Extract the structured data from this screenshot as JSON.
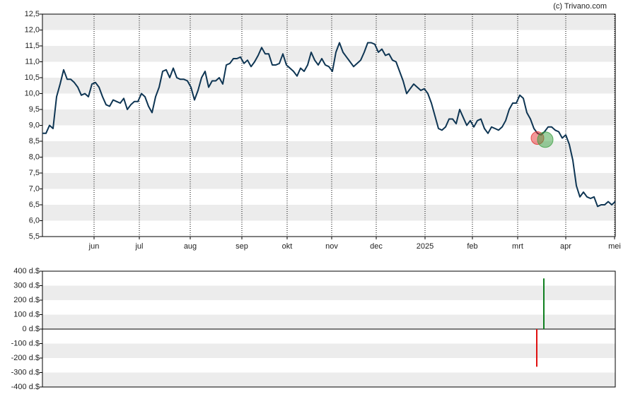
{
  "credit": "(c) Trivano.com",
  "chart_data": [
    {
      "type": "line",
      "color": "#0e3553",
      "grid": "stripes",
      "xlim": [
        0,
        162
      ],
      "xticks": [
        {
          "value": 14.6,
          "label": "jun"
        },
        {
          "value": 27.4,
          "label": "jul"
        },
        {
          "value": 41.8,
          "label": "aug"
        },
        {
          "value": 56.4,
          "label": "sep"
        },
        {
          "value": 69.2,
          "label": "okt"
        },
        {
          "value": 81.8,
          "label": "nov"
        },
        {
          "value": 94.4,
          "label": "dec"
        },
        {
          "value": 108.2,
          "label": "2025"
        },
        {
          "value": 121.6,
          "label": "feb"
        },
        {
          "value": 134.4,
          "label": "mrt"
        },
        {
          "value": 148,
          "label": "apr"
        },
        {
          "value": 161.8,
          "label": "mei"
        }
      ],
      "ylim": [
        5.5,
        12.5
      ],
      "yticks": [
        {
          "value": 5.5,
          "label": "5,5"
        },
        {
          "value": 6,
          "label": "6,0"
        },
        {
          "value": 6.5,
          "label": "6,5"
        },
        {
          "value": 7,
          "label": "7,0"
        },
        {
          "value": 7.5,
          "label": "7,5"
        },
        {
          "value": 8,
          "label": "8,0"
        },
        {
          "value": 8.5,
          "label": "8,5"
        },
        {
          "value": 9,
          "label": "9,0"
        },
        {
          "value": 9.5,
          "label": "9,5"
        },
        {
          "value": 10,
          "label": "10,0"
        },
        {
          "value": 10.5,
          "label": "10,5"
        },
        {
          "value": 11,
          "label": "11,0"
        },
        {
          "value": 11.5,
          "label": "11,5"
        },
        {
          "value": 12,
          "label": "12,0"
        },
        {
          "value": 12.5,
          "label": "12,5"
        }
      ],
      "values": [
        8.75,
        8.75,
        9.0,
        8.9,
        9.9,
        10.3,
        10.75,
        10.45,
        10.45,
        10.35,
        10.2,
        9.95,
        10.0,
        9.9,
        10.3,
        10.35,
        10.2,
        9.9,
        9.65,
        9.6,
        9.8,
        9.75,
        9.7,
        9.85,
        9.5,
        9.65,
        9.75,
        9.75,
        10.0,
        9.9,
        9.6,
        9.4,
        9.9,
        10.2,
        10.7,
        10.75,
        10.5,
        10.8,
        10.5,
        10.45,
        10.45,
        10.4,
        10.2,
        9.8,
        10.1,
        10.5,
        10.7,
        10.2,
        10.4,
        10.4,
        10.5,
        10.3,
        10.9,
        10.95,
        11.1,
        11.1,
        11.15,
        10.95,
        11.05,
        10.85,
        11.0,
        11.2,
        11.45,
        11.25,
        11.25,
        10.9,
        10.9,
        10.95,
        11.25,
        10.9,
        10.8,
        10.7,
        10.55,
        10.8,
        10.7,
        10.9,
        11.3,
        11.05,
        10.9,
        11.1,
        10.9,
        10.85,
        10.7,
        11.3,
        11.6,
        11.3,
        11.15,
        11.0,
        10.85,
        10.95,
        11.05,
        11.3,
        11.6,
        11.6,
        11.55,
        11.3,
        11.4,
        11.2,
        11.25,
        11.05,
        11.0,
        10.7,
        10.4,
        10.0,
        10.15,
        10.3,
        10.2,
        10.1,
        10.15,
        10.0,
        9.7,
        9.3,
        8.9,
        8.85,
        8.95,
        9.2,
        9.2,
        9.05,
        9.5,
        9.25,
        9.0,
        9.15,
        8.95,
        9.15,
        9.2,
        8.9,
        8.75,
        8.95,
        8.9,
        8.85,
        8.95,
        9.15,
        9.5,
        9.7,
        9.7,
        9.95,
        9.85,
        9.4,
        9.2,
        8.9,
        8.75,
        8.7,
        8.8,
        8.95,
        8.95,
        8.85,
        8.8,
        8.6,
        8.7,
        8.4,
        7.9,
        7.1,
        6.75,
        6.9,
        6.75,
        6.7,
        6.75,
        6.45,
        6.5,
        6.5,
        6.6,
        6.5,
        6.6
      ],
      "markers": [
        {
          "x": 140,
          "y": 8.6,
          "color": "#e53030"
        },
        {
          "x": 142.2,
          "y": 8.55,
          "color": "#3aa040"
        }
      ]
    },
    {
      "type": "bar",
      "grid": "stripes",
      "xlim": [
        0,
        162
      ],
      "ylim": [
        -400,
        400
      ],
      "yticks": [
        {
          "value": -400,
          "label": "-400 d.$"
        },
        {
          "value": -300,
          "label": "-300 d.$"
        },
        {
          "value": -200,
          "label": "-200 d.$"
        },
        {
          "value": -100,
          "label": "-100 d.$"
        },
        {
          "value": 0,
          "label": "0 d.$"
        },
        {
          "value": 100,
          "label": "100 d.$"
        },
        {
          "value": 200,
          "label": "200 d.$"
        },
        {
          "value": 300,
          "label": "300 d.$"
        },
        {
          "value": 400,
          "label": "400 d.$"
        }
      ],
      "x": [
        139.8,
        141.8
      ],
      "values": [
        -260,
        350
      ],
      "colors": [
        "#e01010",
        "#108020"
      ]
    }
  ]
}
